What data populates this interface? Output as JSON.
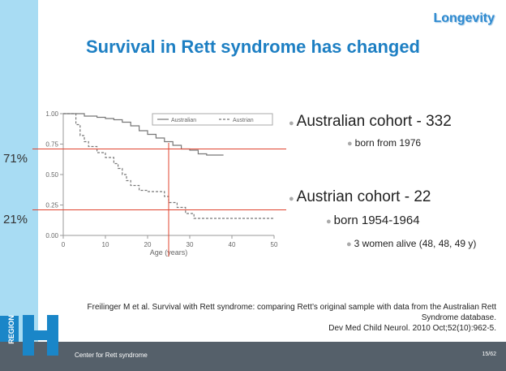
{
  "header": {
    "tag": "Longevity",
    "title": "Survival in Rett syndrome has changed"
  },
  "markers": {
    "upper": "71%",
    "lower": "21%"
  },
  "bullets": [
    {
      "text": "Australian cohort - 332"
    },
    {
      "text": "born from 1976"
    },
    {
      "text": "Austrian cohort - 22"
    },
    {
      "text": "born 1954-1964"
    },
    {
      "text": "3 women alive (48, 48, 49 y)"
    }
  ],
  "reference": {
    "line1": "Freilinger M et al. Survival with Rett syndrome: comparing Rett’s original sample with data from the Australian Rett",
    "line2": "Syndrome database.",
    "line3": "Dev Med Child Neurol. 2010 Oct;52(10):962-5."
  },
  "footer": {
    "text": "Center for Rett syndrome",
    "page": "15/62"
  },
  "logo": {
    "text": "REGION"
  },
  "colors": {
    "title": "#1d7fc3",
    "sidebar": "#a8dcf3",
    "footer": "#55606a",
    "refline": "#e0442f"
  },
  "chart_data": {
    "type": "line",
    "xlabel": "Age (years)",
    "x_ticks": [
      0,
      10,
      20,
      30,
      40,
      50
    ],
    "y_ticks": [
      "0.00",
      "0.25",
      "0.50",
      "0.75",
      "1.00"
    ],
    "xlim": [
      0,
      50
    ],
    "ylim": [
      0,
      1
    ],
    "legend": {
      "placement": "top-right"
    },
    "series": [
      {
        "name": "Australian",
        "style": "solid",
        "x": [
          0,
          3,
          5,
          8,
          10,
          12,
          14,
          16,
          18,
          20,
          22,
          24,
          26,
          28,
          30,
          32,
          34,
          38
        ],
        "y": [
          1.0,
          1.0,
          0.98,
          0.97,
          0.96,
          0.95,
          0.93,
          0.9,
          0.86,
          0.83,
          0.8,
          0.77,
          0.74,
          0.71,
          0.7,
          0.67,
          0.66,
          0.66
        ]
      },
      {
        "name": "Austrian",
        "style": "dashed",
        "x": [
          0,
          2,
          3,
          4,
          5,
          6,
          8,
          10,
          12,
          13,
          14,
          15,
          16,
          18,
          20,
          22,
          24,
          25,
          27,
          29,
          31,
          33,
          40,
          50
        ],
        "y": [
          1.0,
          1.0,
          0.91,
          0.82,
          0.77,
          0.73,
          0.68,
          0.64,
          0.59,
          0.55,
          0.5,
          0.45,
          0.41,
          0.37,
          0.36,
          0.36,
          0.32,
          0.27,
          0.23,
          0.18,
          0.14,
          0.14,
          0.14,
          0.14
        ]
      }
    ],
    "reference_lines": {
      "horizontal": [
        0.71,
        0.21
      ],
      "vertical": 25
    }
  }
}
